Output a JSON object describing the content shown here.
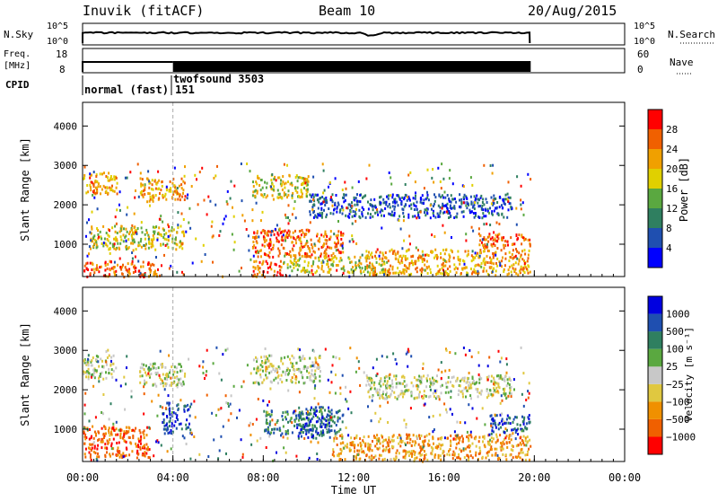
{
  "header": {
    "title": "Inuvik (fitACF)",
    "beam": "Beam 10",
    "date": "20/Aug/2015"
  },
  "panels": {
    "nsky": {
      "left_label": "N.Sky",
      "left_ticks": [
        "10^5",
        "10^0"
      ],
      "right_ticks": [
        "10^5",
        "10^0"
      ],
      "right_label": "N.Search"
    },
    "freq": {
      "left_label_1": "Freq.",
      "left_label_2": "[MHz]",
      "left_ticks": [
        "18",
        "8"
      ],
      "right_ticks": [
        "60",
        "0"
      ],
      "right_label": "Nave"
    },
    "cpid": {
      "label": "CPID",
      "entries": [
        {
          "text": "normal (fast) 151",
          "start_hour": 0.0
        },
        {
          "text": "twofsound 3503",
          "start_hour": 4.0
        }
      ]
    }
  },
  "colors": {
    "power_scale": [
      "#0000ff",
      "#1f4fb0",
      "#2f7f60",
      "#5aa840",
      "#e0d000",
      "#f0a000",
      "#f06000",
      "#ff0000"
    ],
    "velocity_scale": [
      "#ff0000",
      "#f06000",
      "#f09000",
      "#e0c840",
      "#c8c8c8",
      "#5aa840",
      "#2f7f60",
      "#1f4fb0",
      "#0000e0"
    ]
  },
  "chart_data": [
    {
      "type": "heatmap",
      "name": "power",
      "ylabel": "Slant Range [km]",
      "yticks": [
        "4000",
        "3000",
        "2000",
        "1000"
      ],
      "ylim": [
        180,
        4600
      ],
      "xlim_hours": [
        0,
        24
      ],
      "data_end_hour": 19.8,
      "colorbar_label": "Power [dB]",
      "colorbar_ticks": [
        "28",
        "24",
        "20",
        "16",
        "12",
        "8",
        "4"
      ],
      "regions": [
        {
          "t0": 0.0,
          "t1": 1.5,
          "r0": 2300,
          "r1": 2850,
          "level": 5
        },
        {
          "t0": 2.5,
          "t1": 4.5,
          "r0": 2100,
          "r1": 2700,
          "level": 5
        },
        {
          "t0": 0.3,
          "t1": 4.5,
          "r0": 900,
          "r1": 1500,
          "level": 4
        },
        {
          "t0": 0.0,
          "t1": 3.5,
          "r0": 200,
          "r1": 600,
          "level": 6
        },
        {
          "t0": 7.5,
          "t1": 10.0,
          "r0": 2200,
          "r1": 2800,
          "level": 4
        },
        {
          "t0": 7.5,
          "t1": 11.5,
          "r0": 700,
          "r1": 1400,
          "level": 6
        },
        {
          "t0": 7.5,
          "t1": 9.0,
          "r0": 200,
          "r1": 600,
          "level": 6
        },
        {
          "t0": 9.0,
          "t1": 13.5,
          "r0": 300,
          "r1": 700,
          "level": 4
        },
        {
          "t0": 12.5,
          "t1": 19.8,
          "r0": 250,
          "r1": 900,
          "level": 5
        },
        {
          "t0": 17.5,
          "t1": 19.8,
          "r0": 900,
          "r1": 1300,
          "level": 6
        },
        {
          "t0": 10.0,
          "t1": 19.0,
          "r0": 1700,
          "r1": 2300,
          "level": 1
        }
      ]
    },
    {
      "type": "heatmap",
      "name": "velocity",
      "ylabel": "Slant Range [km]",
      "yticks": [
        "4000",
        "3000",
        "2000",
        "1000"
      ],
      "ylim": [
        180,
        4600
      ],
      "xlim_hours": [
        0,
        24
      ],
      "data_end_hour": 19.8,
      "xticks": [
        "00:00",
        "04:00",
        "08:00",
        "12:00",
        "16:00",
        "20:00",
        "00:00"
      ],
      "xlabel": "Time UT",
      "colorbar_label": "Velocity [m s⁻¹]",
      "colorbar_ticks": [
        "1000",
        "500",
        "100",
        "25",
        "−25",
        "−100",
        "−500",
        "−1000"
      ],
      "regions": [
        {
          "t0": 0.0,
          "t1": 1.5,
          "r0": 2300,
          "r1": 2900,
          "level": 4
        },
        {
          "t0": 2.5,
          "t1": 4.5,
          "r0": 2100,
          "r1": 2700,
          "level": 4
        },
        {
          "t0": 3.5,
          "t1": 4.8,
          "r0": 900,
          "r1": 1700,
          "level": 7
        },
        {
          "t0": 0.0,
          "t1": 3.0,
          "r0": 300,
          "r1": 1100,
          "level": 1
        },
        {
          "t0": 7.5,
          "t1": 10.5,
          "r0": 2200,
          "r1": 2900,
          "level": 4
        },
        {
          "t0": 8.0,
          "t1": 11.5,
          "r0": 900,
          "r1": 1500,
          "level": 6
        },
        {
          "t0": 9.5,
          "t1": 11.0,
          "r0": 800,
          "r1": 1600,
          "level": 7
        },
        {
          "t0": 11.0,
          "t1": 19.8,
          "r0": 250,
          "r1": 900,
          "level": 2
        },
        {
          "t0": 12.5,
          "t1": 19.0,
          "r0": 1800,
          "r1": 2400,
          "level": 4
        },
        {
          "t0": 18.0,
          "t1": 19.8,
          "r0": 900,
          "r1": 1400,
          "level": 7
        }
      ]
    }
  ]
}
